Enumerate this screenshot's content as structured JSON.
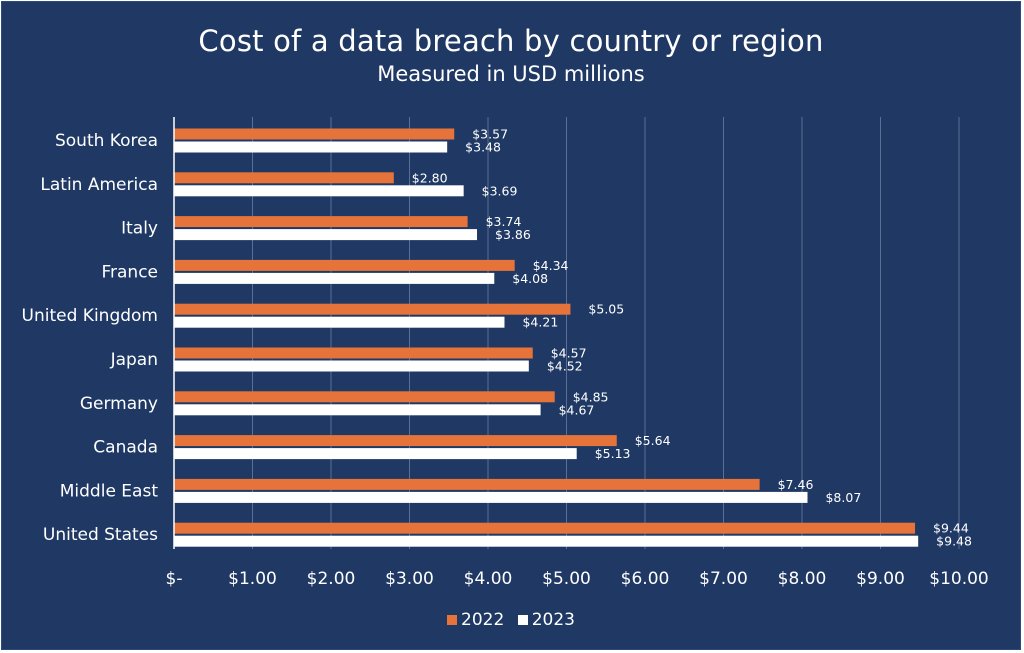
{
  "chart_data": {
    "type": "bar",
    "orientation": "horizontal",
    "title": "Cost of a data breach by country or region",
    "subtitle": "Measured in USD millions",
    "categories": [
      "South Korea",
      "Latin America",
      "Italy",
      "France",
      "United Kingdom",
      "Japan",
      "Germany",
      "Canada",
      "Middle East",
      "United States"
    ],
    "series": [
      {
        "name": "2022",
        "color": "#e5733a",
        "values": [
          3.57,
          2.8,
          3.74,
          4.34,
          5.05,
          4.57,
          4.85,
          5.64,
          7.46,
          9.44
        ],
        "labels": [
          "$3.57",
          "$2.80",
          "$3.74",
          "$4.34",
          "$5.05",
          "$4.57",
          "$4.85",
          "$5.64",
          "$7.46",
          "$9.44"
        ]
      },
      {
        "name": "2023",
        "color": "#ffffff",
        "values": [
          3.48,
          3.69,
          3.86,
          4.08,
          4.21,
          4.52,
          4.67,
          5.13,
          8.07,
          9.48
        ],
        "labels": [
          "$3.48",
          "$3.69",
          "$3.86",
          "$4.08",
          "$4.21",
          "$4.52",
          "$4.67",
          "$5.13",
          "$8.07",
          "$9.48"
        ]
      }
    ],
    "xlim": [
      0,
      10
    ],
    "xticks": [
      0,
      1,
      2,
      3,
      4,
      5,
      6,
      7,
      8,
      9,
      10
    ],
    "xtick_labels": [
      "$-",
      "$1.00",
      "$2.00",
      "$3.00",
      "$4.00",
      "$5.00",
      "$6.00",
      "$7.00",
      "$8.00",
      "$9.00",
      "$10.00"
    ],
    "grid": true,
    "legend_position": "bottom-center",
    "background": "#1f3864"
  }
}
